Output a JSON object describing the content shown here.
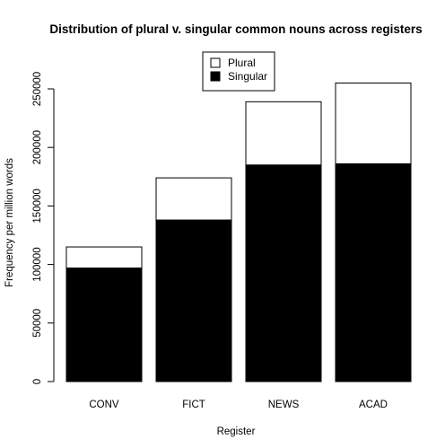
{
  "chart_data": {
    "type": "bar",
    "stacked": true,
    "title": "Distribution of plural v. singular common nouns across registers",
    "xlabel": "Register",
    "ylabel": "Frequency per million words",
    "categories": [
      "CONV",
      "FICT",
      "NEWS",
      "ACAD"
    ],
    "series": [
      {
        "name": "Singular",
        "values": [
          97000,
          138000,
          185000,
          186000
        ],
        "color": "#000000"
      },
      {
        "name": "Plural",
        "values": [
          18000,
          36000,
          54000,
          69000
        ],
        "color": "#ffffff"
      }
    ],
    "ylim": [
      0,
      250000
    ],
    "yticks": [
      0,
      50000,
      100000,
      150000,
      200000,
      250000
    ],
    "ytick_labels": [
      "0",
      "50000",
      "100000",
      "150000",
      "200000",
      "250000"
    ],
    "grid": false,
    "legend": {
      "position": "top-center",
      "entries": [
        {
          "label": "Plural",
          "color": "#ffffff"
        },
        {
          "label": "Singular",
          "color": "#000000"
        }
      ]
    }
  }
}
